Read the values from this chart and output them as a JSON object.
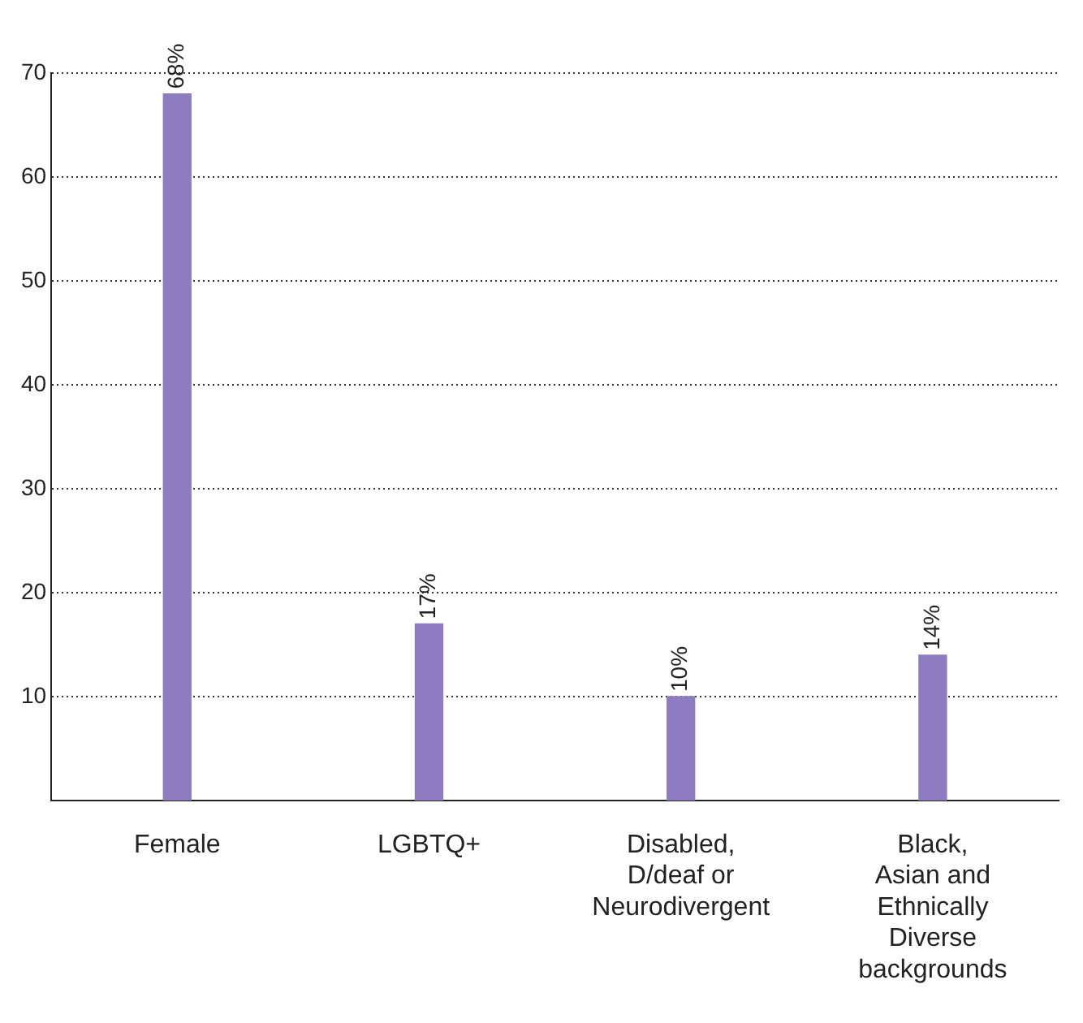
{
  "chart_data": {
    "type": "bar",
    "categories": [
      "Female",
      "LGBTQ+",
      "Disabled, D/deaf or Neurodivergent",
      "Black, Asian and Ethnically Diverse backgrounds"
    ],
    "values": [
      68,
      17,
      10,
      14
    ],
    "value_labels": [
      "68%",
      "17%",
      "10%",
      "14%"
    ],
    "color": "#8e7cc0",
    "ylim": [
      0,
      70
    ],
    "yticks": [
      10,
      20,
      30,
      40,
      50,
      60,
      70
    ],
    "grid": "y",
    "legend": false
  }
}
